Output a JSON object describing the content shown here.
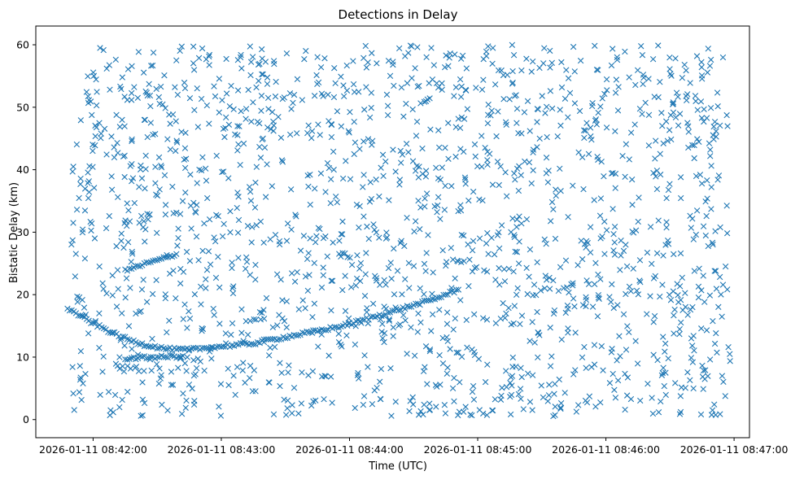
{
  "chart_data": {
    "type": "scatter",
    "title": "Detections in Delay",
    "xlabel": "Time (UTC)",
    "ylabel": "Bistatic Delay (km)",
    "x_unit": "minutes after 2026-01-11 08:42:00",
    "xlim": [
      -0.447,
      5.12
    ],
    "ylim": [
      -2.9,
      63.0
    ],
    "x_ticks": [
      {
        "value": 0,
        "label": "2026-01-11 08:42:00"
      },
      {
        "value": 1,
        "label": "2026-01-11 08:43:00"
      },
      {
        "value": 2,
        "label": "2026-01-11 08:44:00"
      },
      {
        "value": 3,
        "label": "2026-01-11 08:45:00"
      },
      {
        "value": 4,
        "label": "2026-01-11 08:46:00"
      },
      {
        "value": 5,
        "label": "2026-01-11 08:47:00"
      }
    ],
    "y_ticks": [
      0,
      10,
      20,
      30,
      40,
      50,
      60
    ],
    "marker": "x",
    "color": "#1f77b4",
    "grid": false,
    "series": [
      {
        "name": "target-track-upper",
        "description": "curved target track",
        "x": [
          -0.2,
          -0.15,
          -0.1,
          -0.05,
          0.0,
          0.05,
          0.1,
          0.15,
          0.2,
          0.25,
          0.3,
          0.35,
          0.4,
          0.45,
          0.5,
          0.55,
          0.6,
          0.65,
          0.7,
          0.75,
          0.8,
          0.85,
          0.9,
          0.95,
          1.0,
          1.05,
          1.1,
          1.15,
          1.2,
          1.25,
          1.3,
          1.35,
          1.4,
          1.45,
          1.5,
          1.55,
          1.6,
          1.65,
          1.7,
          1.75,
          1.8,
          1.85,
          1.9,
          1.95,
          2.0,
          2.05,
          2.1,
          2.15,
          2.2,
          2.25,
          2.3,
          2.35,
          2.4,
          2.45,
          2.5,
          2.55,
          2.6,
          2.65,
          2.7,
          2.75,
          2.8,
          2.85
        ],
        "y": [
          17.8,
          17.2,
          16.6,
          16.0,
          15.4,
          14.9,
          14.4,
          13.9,
          13.4,
          13.0,
          12.6,
          12.3,
          12.0,
          11.8,
          11.6,
          11.4,
          11.3,
          11.2,
          11.2,
          11.2,
          11.3,
          11.4,
          11.5,
          11.6,
          11.7,
          11.8,
          11.9,
          12.0,
          12.1,
          12.2,
          12.4,
          12.6,
          12.8,
          13.0,
          13.2,
          13.4,
          13.6,
          13.8,
          14.0,
          14.2,
          14.4,
          14.6,
          14.8,
          15.0,
          15.3,
          15.6,
          15.9,
          16.2,
          16.5,
          16.8,
          17.1,
          17.4,
          17.7,
          18.0,
          18.3,
          18.6,
          18.9,
          19.2,
          19.6,
          20.0,
          20.4,
          20.8
        ]
      },
      {
        "name": "target-track-lower",
        "description": "flat segment near 10 km",
        "x": [
          0.25,
          0.3,
          0.35,
          0.4,
          0.45,
          0.5,
          0.55,
          0.6,
          0.65,
          0.7
        ],
        "y": [
          9.8,
          9.8,
          9.9,
          9.9,
          10.0,
          10.0,
          10.0,
          10.1,
          10.1,
          10.2
        ]
      },
      {
        "name": "target-track-rising",
        "description": "rising segment 0.25-0.65",
        "x": [
          0.25,
          0.3,
          0.35,
          0.4,
          0.45,
          0.5,
          0.55,
          0.6,
          0.65
        ],
        "y": [
          23.8,
          24.2,
          24.5,
          24.9,
          25.2,
          25.5,
          25.8,
          26.1,
          26.5
        ]
      },
      {
        "name": "clutter",
        "description": "random detections over full range",
        "count": 1700
      }
    ]
  }
}
